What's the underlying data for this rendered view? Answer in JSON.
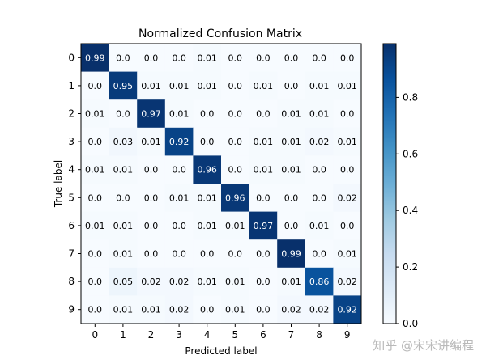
{
  "chart_data": {
    "type": "heatmap",
    "title": "Normalized Confusion Matrix",
    "xlabel": "Predicted label",
    "ylabel": "True label",
    "x_categories": [
      "0",
      "1",
      "2",
      "3",
      "4",
      "5",
      "6",
      "7",
      "8",
      "9"
    ],
    "y_categories": [
      "0",
      "1",
      "2",
      "3",
      "4",
      "5",
      "6",
      "7",
      "8",
      "9"
    ],
    "values": [
      [
        "0.99",
        "0.0",
        "0.0",
        "0.0",
        "0.01",
        "0.0",
        "0.0",
        "0.0",
        "0.0",
        "0.0"
      ],
      [
        "0.0",
        "0.95",
        "0.01",
        "0.01",
        "0.01",
        "0.0",
        "0.01",
        "0.0",
        "0.01",
        "0.01"
      ],
      [
        "0.01",
        "0.0",
        "0.97",
        "0.01",
        "0.0",
        "0.0",
        "0.0",
        "0.01",
        "0.01",
        "0.0"
      ],
      [
        "0.0",
        "0.03",
        "0.01",
        "0.92",
        "0.0",
        "0.0",
        "0.01",
        "0.01",
        "0.02",
        "0.01"
      ],
      [
        "0.01",
        "0.01",
        "0.0",
        "0.0",
        "0.96",
        "0.0",
        "0.01",
        "0.01",
        "0.0",
        "0.0"
      ],
      [
        "0.0",
        "0.0",
        "0.0",
        "0.01",
        "0.01",
        "0.96",
        "0.0",
        "0.0",
        "0.0",
        "0.02"
      ],
      [
        "0.01",
        "0.01",
        "0.0",
        "0.0",
        "0.01",
        "0.01",
        "0.97",
        "0.0",
        "0.01",
        "0.0"
      ],
      [
        "0.0",
        "0.01",
        "0.0",
        "0.0",
        "0.0",
        "0.0",
        "0.0",
        "0.99",
        "0.0",
        "0.01"
      ],
      [
        "0.0",
        "0.05",
        "0.02",
        "0.02",
        "0.01",
        "0.01",
        "0.0",
        "0.01",
        "0.86",
        "0.02"
      ],
      [
        "0.0",
        "0.01",
        "0.01",
        "0.02",
        "0.0",
        "0.01",
        "0.0",
        "0.02",
        "0.02",
        "0.92"
      ]
    ],
    "colorbar": {
      "colormap": "Blues",
      "range": [
        0,
        0.99
      ],
      "ticks": [
        0.0,
        0.2,
        0.4,
        0.6,
        0.8
      ],
      "tick_labels": [
        "0.0",
        "0.2",
        "0.4",
        "0.6",
        "0.8"
      ]
    },
    "text_threshold": 0.5,
    "grid": false
  },
  "watermark": "知乎 @宋宋讲编程"
}
